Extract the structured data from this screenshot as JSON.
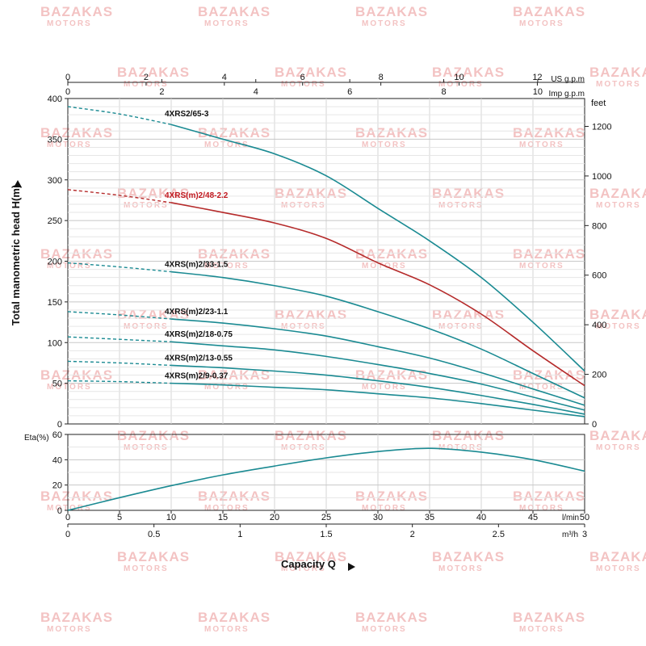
{
  "watermark": {
    "line1": "BAZAKAS",
    "line2": "MOTORS"
  },
  "chart_data": {
    "type": "line",
    "head_chart": {
      "ylabel": "Total manometric head H(m)",
      "ylim": [
        0,
        400
      ],
      "yticks": [
        0,
        50,
        100,
        150,
        200,
        250,
        300,
        350,
        400
      ],
      "right_axis": {
        "unit": "feet",
        "ticks": [
          0,
          200,
          400,
          600,
          800,
          1000,
          1200
        ]
      },
      "top_axes": [
        {
          "unit": "US g.p.m",
          "ticks": [
            0,
            2,
            4,
            6,
            8,
            10,
            12
          ]
        },
        {
          "unit": "Imp g.p.m",
          "ticks": [
            0,
            2,
            4,
            6,
            8,
            10
          ]
        }
      ],
      "series": [
        {
          "name": "4XRS2/65-3",
          "color": "#1a8a92",
          "label_color": "#111111",
          "dashed_until": 10,
          "x": [
            0,
            5,
            10,
            15,
            20,
            25,
            30,
            35,
            40,
            45,
            50
          ],
          "values": [
            390,
            381,
            368,
            350,
            332,
            305,
            265,
            225,
            180,
            125,
            65
          ]
        },
        {
          "name": "4XRS(m)2/48-2.2",
          "color": "#b52a2a",
          "label_color": "#c0181f",
          "dashed_until": 10,
          "x": [
            0,
            5,
            10,
            15,
            20,
            25,
            30,
            35,
            40,
            45,
            50
          ],
          "values": [
            288,
            281,
            272,
            260,
            247,
            228,
            198,
            171,
            135,
            90,
            47
          ]
        },
        {
          "name": "4XRS(m)2/33-1.5",
          "color": "#1a8a92",
          "label_color": "#111111",
          "dashed_until": 10,
          "x": [
            0,
            5,
            10,
            15,
            20,
            25,
            30,
            35,
            40,
            45,
            50
          ],
          "values": [
            198,
            193,
            187,
            180,
            170,
            157,
            138,
            117,
            92,
            62,
            32
          ]
        },
        {
          "name": "4XRS(m)2/23-1.1",
          "color": "#1a8a92",
          "label_color": "#111111",
          "dashed_until": 10,
          "x": [
            0,
            5,
            10,
            15,
            20,
            25,
            30,
            35,
            40,
            45,
            50
          ],
          "values": [
            138,
            134,
            129,
            124,
            117,
            108,
            95,
            81,
            63,
            43,
            23
          ]
        },
        {
          "name": "4XRS(m)2/18-0.75",
          "color": "#1a8a92",
          "label_color": "#111111",
          "dashed_until": 10,
          "x": [
            0,
            5,
            10,
            15,
            20,
            25,
            30,
            35,
            40,
            45,
            50
          ],
          "values": [
            107,
            104,
            101,
            96,
            91,
            83,
            73,
            62,
            49,
            33,
            17
          ]
        },
        {
          "name": "4XRS(m)2/13-0.55",
          "color": "#1a8a92",
          "label_color": "#111111",
          "dashed_until": 10,
          "x": [
            0,
            5,
            10,
            15,
            20,
            25,
            30,
            35,
            40,
            45,
            50
          ],
          "values": [
            77,
            75,
            72,
            69,
            65,
            60,
            53,
            45,
            35,
            24,
            12
          ]
        },
        {
          "name": "4XRS(m)2/9-0.37",
          "color": "#1a8a92",
          "label_color": "#111111",
          "dashed_until": 10,
          "x": [
            0,
            5,
            10,
            15,
            20,
            25,
            30,
            35,
            40,
            45,
            50
          ],
          "values": [
            53,
            52,
            50,
            48,
            45,
            42,
            37,
            32,
            25,
            17,
            9
          ]
        }
      ]
    },
    "efficiency_chart": {
      "ylabel": "Eta(%)",
      "ylim": [
        0,
        60
      ],
      "yticks": [
        0,
        20,
        40,
        60
      ],
      "series": [
        {
          "color": "#1a8a92",
          "x": [
            0,
            5,
            10,
            15,
            20,
            25,
            30,
            35,
            40,
            45,
            50
          ],
          "values": [
            0,
            10,
            19.5,
            28,
            35,
            41.5,
            46.5,
            49,
            46,
            40,
            31
          ]
        }
      ]
    },
    "x_axes": [
      {
        "unit": "l/min",
        "ticks": [
          0,
          5,
          10,
          15,
          20,
          25,
          30,
          35,
          40,
          45,
          50
        ]
      },
      {
        "unit": "m³/h",
        "ticks": [
          "0",
          "0.5",
          "1",
          "1.5",
          "2",
          "2.5",
          "3"
        ]
      }
    ],
    "xlabel": "Capacity Q",
    "xlim": [
      0,
      50
    ],
    "grid": true
  }
}
